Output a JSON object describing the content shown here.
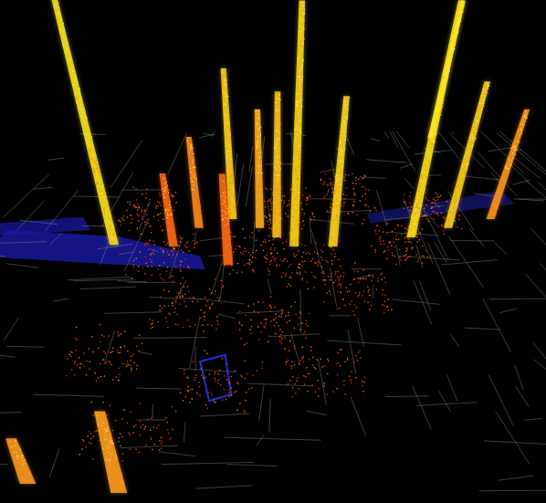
{
  "chart_data": {
    "type": "column_map",
    "tick_labels": false,
    "x": [
      4.6,
      37.4,
      56,
      51.1,
      46,
      67,
      27.6,
      90.5,
      103,
      118,
      25.9,
      38,
      21.7,
      120,
      11
    ],
    "z": [
      75.5,
      83.3,
      75,
      77.8,
      80.6,
      75,
      80.6,
      77.8,
      80.6,
      83.3,
      0,
      69.4,
      75,
      108,
      2.8
    ],
    "values": [
      181,
      118,
      175,
      107,
      90,
      107,
      69,
      174,
      111,
      86,
      32,
      61,
      52,
      153,
      18
    ],
    "colors": [
      "#ffe41c",
      "#ffd21a",
      "#ffd61a",
      "#ffc41a",
      "#ffb01a",
      "#ffd81c",
      "#ff8a1e",
      "#ffe41c",
      "#ffd21a",
      "#ff9a1e",
      "#ffa01e",
      "#ff6a14",
      "#ff6a14",
      "#ffe41c",
      "#ff9a1e"
    ],
    "xlim": [
      -20,
      120
    ],
    "zlim": [
      0,
      110
    ],
    "ylim": [
      0,
      200
    ]
  }
}
